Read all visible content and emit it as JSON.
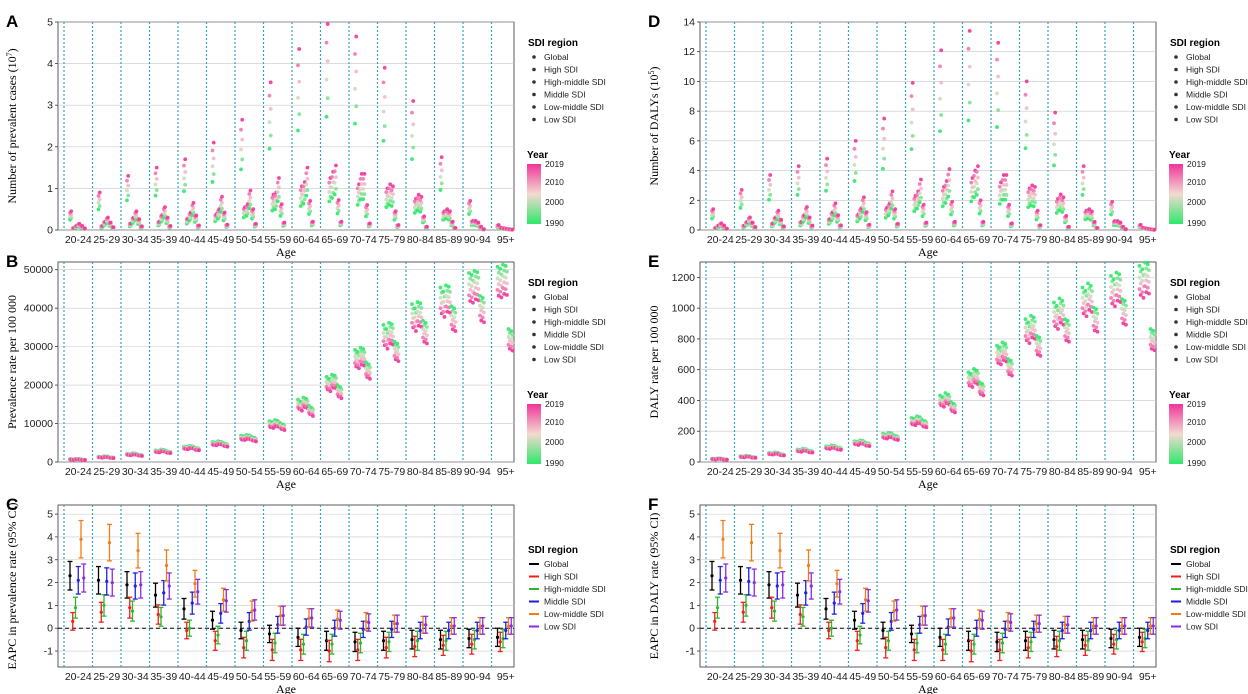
{
  "chart_data": [
    {
      "panel": "A",
      "type": "scatter",
      "ylabel": "Number of prevalent cases (10^7)",
      "xlabel": "Age",
      "ylim": [
        0,
        5
      ],
      "yticks": [
        0,
        1,
        2,
        3,
        4,
        5
      ],
      "categories": [
        "20-24",
        "25-29",
        "30-34",
        "35-39",
        "40-44",
        "45-49",
        "50-54",
        "55-59",
        "60-64",
        "65-69",
        "70-74",
        "75-79",
        "80-84",
        "85-89",
        "90-94",
        "95+"
      ],
      "series": [
        {
          "name": "Global",
          "values": [
            0.45,
            0.9,
            1.3,
            1.5,
            1.7,
            2.1,
            2.65,
            3.55,
            4.35,
            4.95,
            4.65,
            3.9,
            3.1,
            1.75,
            0.7,
            0.12
          ]
        },
        {
          "name": "High SDI",
          "values": [
            0.05,
            0.1,
            0.16,
            0.2,
            0.28,
            0.38,
            0.55,
            0.85,
            1.05,
            1.25,
            1.1,
            1.0,
            0.75,
            0.45,
            0.22,
            0.05
          ]
        },
        {
          "name": "High-middle SDI",
          "values": [
            0.1,
            0.2,
            0.3,
            0.36,
            0.42,
            0.5,
            0.62,
            0.9,
            1.15,
            1.4,
            1.35,
            1.1,
            0.85,
            0.5,
            0.22,
            0.04
          ]
        },
        {
          "name": "Middle SDI",
          "values": [
            0.15,
            0.3,
            0.45,
            0.55,
            0.65,
            0.8,
            0.95,
            1.25,
            1.5,
            1.55,
            1.35,
            1.05,
            0.8,
            0.45,
            0.18,
            0.03
          ]
        },
        {
          "name": "Low-middle SDI",
          "values": [
            0.1,
            0.18,
            0.26,
            0.3,
            0.35,
            0.42,
            0.5,
            0.62,
            0.7,
            0.72,
            0.6,
            0.45,
            0.33,
            0.2,
            0.08,
            0.02
          ]
        },
        {
          "name": "Low SDI",
          "values": [
            0.04,
            0.07,
            0.09,
            0.1,
            0.11,
            0.13,
            0.15,
            0.18,
            0.2,
            0.2,
            0.16,
            0.12,
            0.08,
            0.05,
            0.02,
            0.01
          ]
        }
      ],
      "legend_title": "SDI region",
      "color_legend_title": "Year",
      "color_legend_ticks": [
        "2019",
        "2010",
        "2000",
        "1990"
      ]
    },
    {
      "panel": "B",
      "type": "scatter",
      "ylabel": "Prevalence rate per 100 000",
      "xlabel": "Age",
      "ylim": [
        0,
        52000
      ],
      "yticks": [
        0,
        10000,
        20000,
        30000,
        40000,
        50000
      ],
      "categories": [
        "20-24",
        "25-29",
        "30-34",
        "35-39",
        "40-44",
        "45-49",
        "50-54",
        "55-59",
        "60-64",
        "65-69",
        "70-74",
        "75-79",
        "80-84",
        "85-89",
        "90-94",
        "95+"
      ],
      "series": [
        {
          "name": "Global",
          "values": [
            700,
            1300,
            2000,
            2800,
            3700,
            4800,
            6300,
            9800,
            15000,
            20500,
            27000,
            33000,
            38000,
            42000,
            45500,
            47000
          ]
        },
        {
          "name": "High SDI",
          "values": [
            650,
            1200,
            1900,
            2700,
            3600,
            4700,
            6200,
            9600,
            14500,
            20000,
            26500,
            32000,
            37000,
            41000,
            45000,
            46500
          ]
        },
        {
          "name": "High-middle SDI",
          "values": [
            750,
            1400,
            2100,
            3000,
            3900,
            5000,
            6500,
            10100,
            15500,
            21000,
            27500,
            33500,
            38500,
            42500,
            46000,
            47500
          ]
        },
        {
          "name": "Middle SDI",
          "values": [
            720,
            1350,
            2050,
            2900,
            3800,
            4900,
            6400,
            9900,
            15200,
            20800,
            27200,
            33200,
            38200,
            42200,
            45700,
            47200
          ]
        },
        {
          "name": "Low-middle SDI",
          "values": [
            600,
            1150,
            1800,
            2600,
            3400,
            4500,
            6000,
            9300,
            13500,
            18500,
            24000,
            29000,
            34000,
            37500,
            40000,
            32000
          ]
        },
        {
          "name": "Low SDI",
          "values": [
            550,
            1100,
            1700,
            2500,
            3300,
            4300,
            5800,
            9000,
            13000,
            18000,
            23500,
            28500,
            33500,
            37000,
            39500,
            31500
          ]
        }
      ],
      "legend_title": "SDI region",
      "color_legend_title": "Year",
      "color_legend_ticks": [
        "2019",
        "2010",
        "2000",
        "1990"
      ]
    },
    {
      "panel": "C",
      "type": "errorbar",
      "ylabel": "EAPC in prevalence rate (95% CI)",
      "xlabel": "Age",
      "ylim": [
        -1.7,
        5.4
      ],
      "yticks": [
        -1,
        0,
        1,
        2,
        3,
        4,
        5
      ],
      "reference_line": 0,
      "categories": [
        "20-24",
        "25-29",
        "30-34",
        "35-39",
        "40-44",
        "45-49",
        "50-54",
        "55-59",
        "60-64",
        "65-69",
        "70-74",
        "75-79",
        "80-84",
        "85-89",
        "90-94",
        "95+"
      ],
      "series": [
        {
          "name": "Global",
          "color": "#000000",
          "values": [
            2.3,
            2.1,
            1.9,
            1.45,
            0.85,
            0.35,
            -0.1,
            -0.25,
            -0.4,
            -0.55,
            -0.6,
            -0.55,
            -0.5,
            -0.5,
            -0.45,
            -0.4
          ]
        },
        {
          "name": "High SDI",
          "color": "#e8221b",
          "values": [
            0.3,
            0.7,
            0.9,
            0.6,
            -0.1,
            -0.55,
            -0.85,
            -0.95,
            -0.95,
            -1.0,
            -0.95,
            -0.85,
            -0.8,
            -0.75,
            -0.7,
            -0.6
          ]
        },
        {
          "name": "High-middle SDI",
          "color": "#2db82d",
          "values": [
            0.9,
            1.0,
            0.75,
            0.5,
            0.0,
            -0.3,
            -0.55,
            -0.65,
            -0.7,
            -0.7,
            -0.65,
            -0.6,
            -0.55,
            -0.55,
            -0.5,
            -0.45
          ]
        },
        {
          "name": "Middle SDI",
          "color": "#1f1fe0",
          "values": [
            2.1,
            2.05,
            1.85,
            1.55,
            1.1,
            0.65,
            0.3,
            0.15,
            0.05,
            0.0,
            -0.05,
            -0.05,
            -0.1,
            -0.1,
            -0.1,
            -0.1
          ]
        },
        {
          "name": "Low-middle SDI",
          "color": "#ef7d18",
          "values": [
            3.9,
            3.75,
            3.4,
            2.75,
            1.95,
            1.25,
            0.75,
            0.55,
            0.45,
            0.4,
            0.3,
            0.2,
            0.15,
            0.1,
            0.1,
            0.1
          ]
        },
        {
          "name": "Low SDI",
          "color": "#8a2be2",
          "values": [
            2.2,
            2.0,
            1.9,
            1.85,
            1.6,
            1.2,
            0.8,
            0.55,
            0.45,
            0.35,
            0.25,
            0.2,
            0.15,
            0.1,
            0.1,
            0.1
          ]
        }
      ],
      "legend_title": "SDI region"
    },
    {
      "panel": "D",
      "type": "scatter",
      "ylabel": "Number of DALYs (10^5)",
      "xlabel": "Age",
      "ylim": [
        0,
        14
      ],
      "yticks": [
        0,
        2,
        4,
        6,
        8,
        10,
        12,
        14
      ],
      "categories": [
        "20-24",
        "25-29",
        "30-34",
        "35-39",
        "40-44",
        "45-49",
        "50-54",
        "55-59",
        "60-64",
        "65-69",
        "70-74",
        "75-79",
        "80-84",
        "85-89",
        "90-94",
        "95+"
      ],
      "series": [
        {
          "name": "Global",
          "values": [
            1.4,
            2.7,
            3.7,
            4.3,
            4.8,
            6.0,
            7.5,
            9.9,
            12.1,
            13.4,
            12.6,
            10.0,
            7.9,
            4.3,
            1.9,
            0.35
          ]
        },
        {
          "name": "High SDI",
          "values": [
            0.15,
            0.3,
            0.45,
            0.55,
            0.75,
            1.05,
            1.5,
            2.3,
            2.9,
            3.5,
            3.2,
            2.8,
            2.1,
            1.3,
            0.6,
            0.15
          ]
        },
        {
          "name": "High-middle SDI",
          "values": [
            0.3,
            0.55,
            0.85,
            1.0,
            1.2,
            1.45,
            1.8,
            2.6,
            3.3,
            4.0,
            3.7,
            3.0,
            2.4,
            1.4,
            0.6,
            0.12
          ]
        },
        {
          "name": "Middle SDI",
          "values": [
            0.45,
            0.85,
            1.3,
            1.55,
            1.8,
            2.2,
            2.6,
            3.4,
            4.1,
            4.3,
            3.7,
            2.9,
            2.2,
            1.25,
            0.5,
            0.08
          ]
        },
        {
          "name": "Low-middle SDI",
          "values": [
            0.3,
            0.5,
            0.7,
            0.85,
            1.0,
            1.2,
            1.4,
            1.7,
            1.9,
            2.0,
            1.7,
            1.3,
            0.95,
            0.55,
            0.22,
            0.05
          ]
        },
        {
          "name": "Low SDI",
          "values": [
            0.1,
            0.2,
            0.25,
            0.3,
            0.32,
            0.36,
            0.42,
            0.5,
            0.55,
            0.55,
            0.45,
            0.33,
            0.22,
            0.14,
            0.06,
            0.02
          ]
        }
      ],
      "legend_title": "SDI region",
      "color_legend_title": "Year",
      "color_legend_ticks": [
        "2019",
        "2010",
        "2000",
        "1990"
      ]
    },
    {
      "panel": "E",
      "type": "scatter",
      "ylabel": "DALY rate per 100 000",
      "xlabel": "Age",
      "ylim": [
        0,
        1300
      ],
      "yticks": [
        0,
        200,
        400,
        600,
        800,
        1000,
        1200
      ],
      "categories": [
        "20-24",
        "25-29",
        "30-34",
        "35-39",
        "40-44",
        "45-49",
        "50-54",
        "55-59",
        "60-64",
        "65-69",
        "70-74",
        "75-79",
        "80-84",
        "85-89",
        "90-94",
        "95+"
      ],
      "series": [
        {
          "name": "Global",
          "values": [
            20,
            35,
            55,
            75,
            95,
            125,
            170,
            265,
            400,
            540,
            700,
            860,
            960,
            1050,
            1120,
            1180
          ]
        },
        {
          "name": "High SDI",
          "values": [
            18,
            33,
            52,
            72,
            92,
            120,
            165,
            260,
            390,
            530,
            690,
            840,
            940,
            1030,
            1100,
            1160
          ]
        },
        {
          "name": "High-middle SDI",
          "values": [
            22,
            38,
            58,
            80,
            100,
            130,
            175,
            275,
            415,
            560,
            720,
            880,
            985,
            1075,
            1140,
            1200
          ]
        },
        {
          "name": "Middle SDI",
          "values": [
            21,
            36,
            56,
            77,
            97,
            127,
            172,
            270,
            405,
            550,
            710,
            870,
            970,
            1060,
            1130,
            1190
          ]
        },
        {
          "name": "Low-middle SDI",
          "values": [
            17,
            30,
            48,
            68,
            88,
            115,
            160,
            250,
            360,
            480,
            620,
            760,
            860,
            930,
            980,
            800
          ]
        },
        {
          "name": "Low SDI",
          "values": [
            16,
            29,
            46,
            66,
            86,
            112,
            155,
            245,
            350,
            470,
            610,
            750,
            850,
            920,
            970,
            790
          ]
        }
      ],
      "legend_title": "SDI region",
      "color_legend_title": "Year",
      "color_legend_ticks": [
        "2019",
        "2010",
        "2000",
        "1990"
      ]
    },
    {
      "panel": "F",
      "type": "errorbar",
      "ylabel": "EAPC in DALY rate (95% CI)",
      "xlabel": "Age",
      "ylim": [
        -1.7,
        5.4
      ],
      "yticks": [
        -1,
        0,
        1,
        2,
        3,
        4,
        5
      ],
      "reference_line": 0,
      "categories": [
        "20-24",
        "25-29",
        "30-34",
        "35-39",
        "40-44",
        "45-49",
        "50-54",
        "55-59",
        "60-64",
        "65-69",
        "70-74",
        "75-79",
        "80-84",
        "85-89",
        "90-94",
        "95+"
      ],
      "series": [
        {
          "name": "Global",
          "color": "#000000",
          "values": [
            2.3,
            2.1,
            1.9,
            1.45,
            0.85,
            0.35,
            -0.1,
            -0.25,
            -0.4,
            -0.55,
            -0.6,
            -0.55,
            -0.5,
            -0.5,
            -0.45,
            -0.4
          ]
        },
        {
          "name": "High SDI",
          "color": "#e8221b",
          "values": [
            0.3,
            0.7,
            0.9,
            0.6,
            -0.1,
            -0.55,
            -0.85,
            -0.95,
            -0.95,
            -1.0,
            -0.95,
            -0.85,
            -0.8,
            -0.75,
            -0.7,
            -0.6
          ]
        },
        {
          "name": "High-middle SDI",
          "color": "#2db82d",
          "values": [
            0.9,
            1.0,
            0.75,
            0.5,
            0.0,
            -0.3,
            -0.55,
            -0.65,
            -0.7,
            -0.7,
            -0.65,
            -0.6,
            -0.55,
            -0.55,
            -0.5,
            -0.45
          ]
        },
        {
          "name": "Middle SDI",
          "color": "#1f1fe0",
          "values": [
            2.1,
            2.05,
            1.85,
            1.55,
            1.1,
            0.65,
            0.3,
            0.15,
            0.05,
            0.0,
            -0.05,
            -0.05,
            -0.1,
            -0.1,
            -0.1,
            -0.1
          ]
        },
        {
          "name": "Low-middle SDI",
          "color": "#ef7d18",
          "values": [
            3.9,
            3.75,
            3.4,
            2.75,
            1.95,
            1.25,
            0.75,
            0.55,
            0.45,
            0.4,
            0.3,
            0.2,
            0.15,
            0.1,
            0.1,
            0.1
          ]
        },
        {
          "name": "Low SDI",
          "color": "#8a2be2",
          "values": [
            2.2,
            2.0,
            1.9,
            1.85,
            1.6,
            1.2,
            0.8,
            0.55,
            0.45,
            0.35,
            0.25,
            0.2,
            0.15,
            0.1,
            0.1,
            0.1
          ]
        }
      ],
      "legend_title": "SDI region"
    }
  ],
  "year_colors": {
    "low": "#2ee86a",
    "high": "#f0359a",
    "mid": "#f3d9d0"
  }
}
